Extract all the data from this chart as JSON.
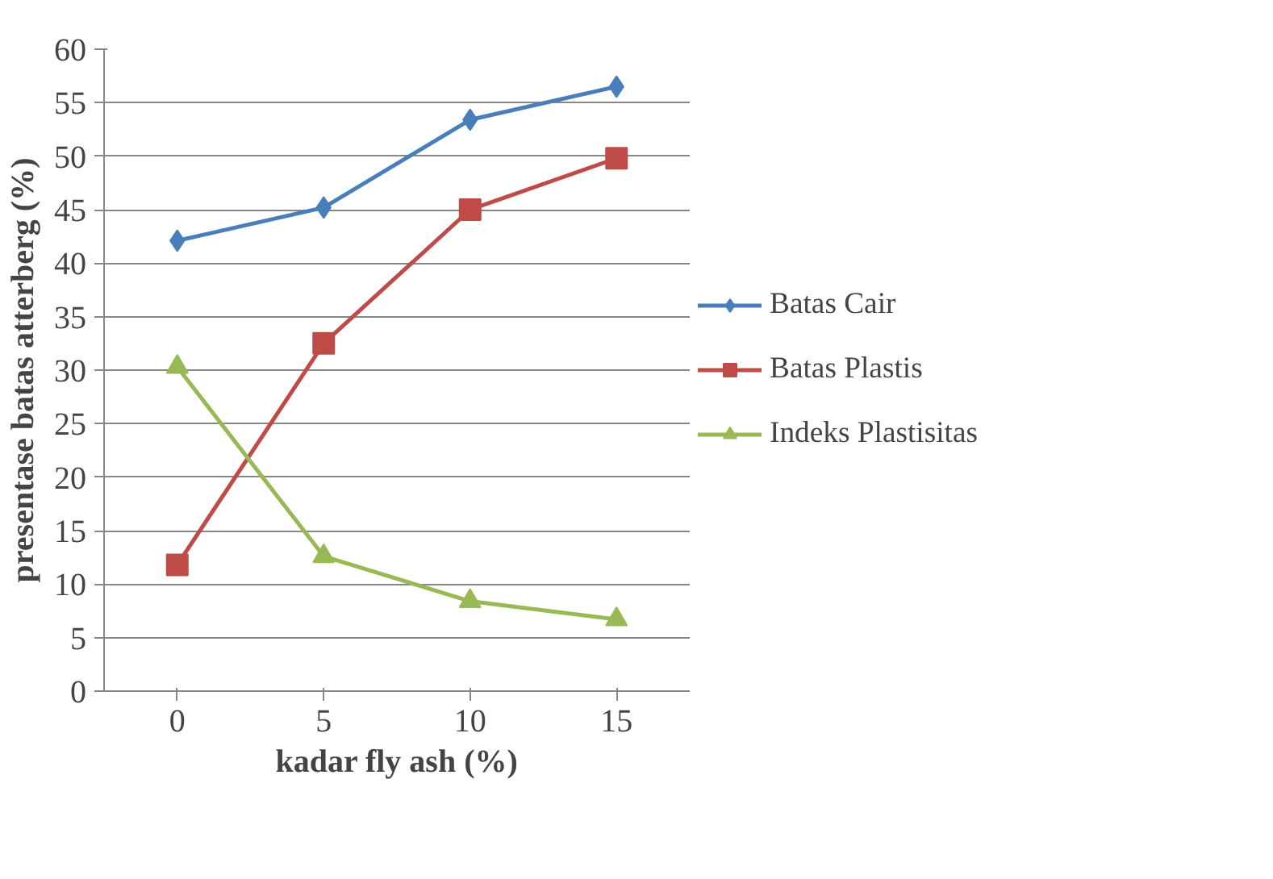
{
  "chart_data": {
    "type": "line",
    "xlabel": "kadar fly ash (%)",
    "ylabel": "presentase batas atterberg (%)",
    "categories": [
      "0",
      "5",
      "10",
      "15"
    ],
    "series": [
      {
        "name": "Batas Cair",
        "color": "#4a7ebb",
        "marker": "diamond",
        "values": [
          42.1,
          45.2,
          53.4,
          56.5
        ]
      },
      {
        "name": "Batas Plastis",
        "color": "#be4b48",
        "marker": "square",
        "values": [
          11.8,
          32.5,
          45.0,
          49.8
        ]
      },
      {
        "name": "Indeks Plastisitas",
        "color": "#98b954",
        "marker": "triangle",
        "values": [
          30.3,
          12.6,
          8.4,
          6.7
        ]
      }
    ],
    "ylim": [
      0,
      60
    ],
    "yticks": [
      0,
      5,
      10,
      15,
      20,
      25,
      30,
      35,
      40,
      45,
      50,
      55,
      60
    ],
    "grid": "y",
    "legend": "right"
  }
}
